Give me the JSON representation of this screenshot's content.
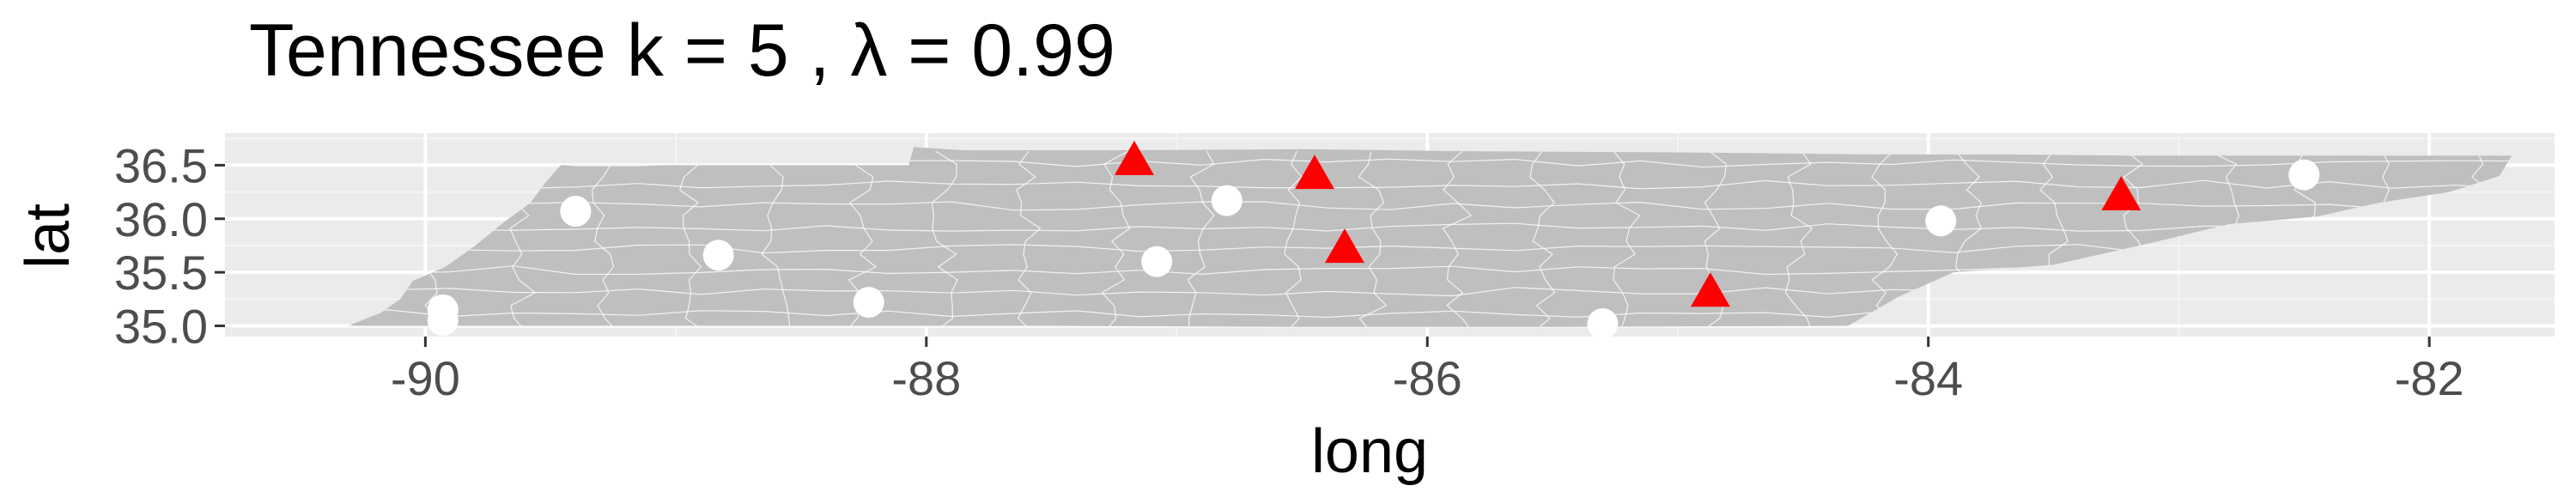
{
  "chart_data": {
    "type": "scatter",
    "title": "Tennessee  k =  5 ,  λ  =  0.99",
    "xlabel": "long",
    "ylabel": "lat",
    "xlim": [
      -90.8,
      -81.5
    ],
    "ylim": [
      34.9,
      36.8
    ],
    "x_ticks": [
      -90,
      -88,
      -86,
      -84,
      -82
    ],
    "x_tick_labels": [
      "-90",
      "-88",
      "-86",
      "-84",
      "-82"
    ],
    "y_ticks": [
      35.0,
      35.5,
      36.0,
      36.5
    ],
    "y_tick_labels": [
      "35.0",
      "35.5",
      "36.0",
      "36.5"
    ],
    "grid": true,
    "legend": "none",
    "colors": {
      "panel": "#ebebeb",
      "grid_major": "#ffffff",
      "map_fill": "#bfbfbf",
      "triangle": "#ff0000",
      "circle": "#ffffff",
      "tick_label": "#4d4d4d",
      "text": "#000000"
    },
    "series": [
      {
        "marker": "triangle",
        "points": [
          {
            "x": -87.17,
            "y": 36.53
          },
          {
            "x": -86.45,
            "y": 36.4
          },
          {
            "x": -86.33,
            "y": 35.71
          },
          {
            "x": -84.87,
            "y": 35.3
          },
          {
            "x": -83.23,
            "y": 36.2
          }
        ]
      },
      {
        "marker": "circle",
        "points": [
          {
            "x": -89.93,
            "y": 35.15
          },
          {
            "x": -89.93,
            "y": 35.05
          },
          {
            "x": -89.4,
            "y": 36.07
          },
          {
            "x": -88.83,
            "y": 35.66
          },
          {
            "x": -88.23,
            "y": 35.22
          },
          {
            "x": -87.08,
            "y": 35.6
          },
          {
            "x": -86.8,
            "y": 36.17
          },
          {
            "x": -85.3,
            "y": 35.02
          },
          {
            "x": -83.95,
            "y": 35.98
          },
          {
            "x": -82.5,
            "y": 36.41
          }
        ]
      }
    ]
  }
}
